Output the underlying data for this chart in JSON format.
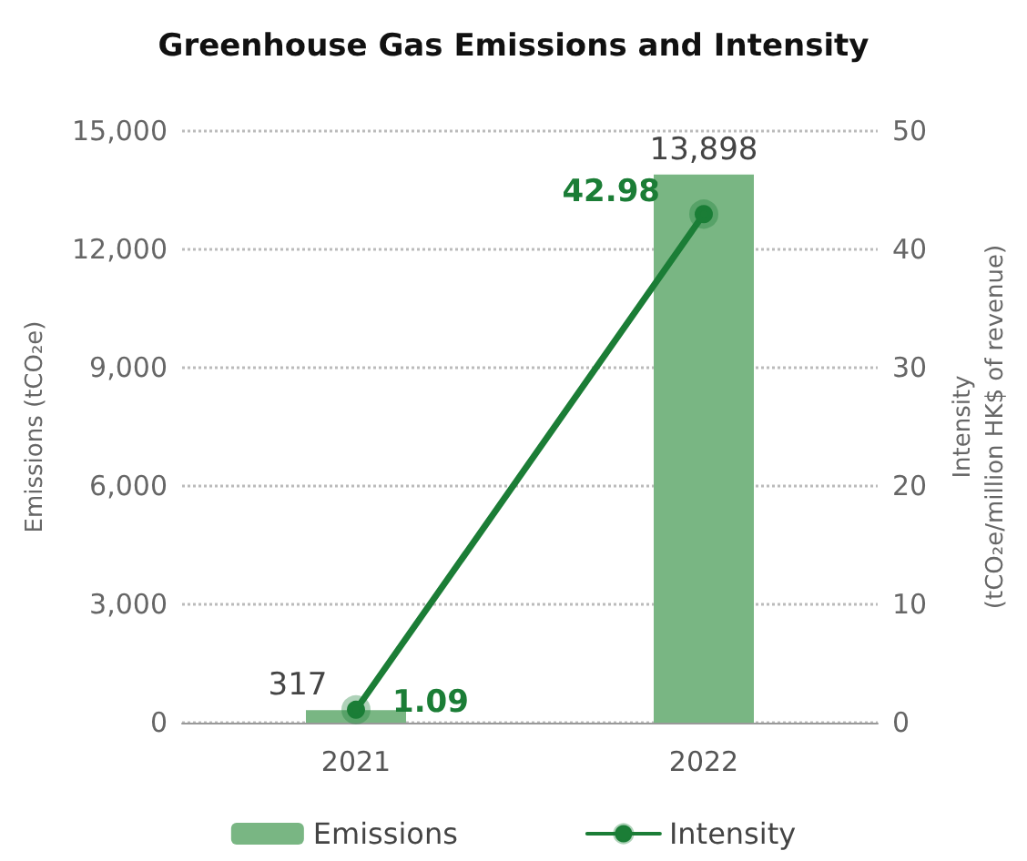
{
  "chart_data": {
    "type": "bar",
    "title": "Greenhouse Gas Emissions and Intensity",
    "categories": [
      "2021",
      "2022"
    ],
    "series": [
      {
        "name": "Emissions",
        "color": "#79b683",
        "values": [
          317,
          13898
        ],
        "value_labels": [
          "317",
          "13,898"
        ]
      },
      {
        "name": "Intensity",
        "type": "line",
        "axis": "y2",
        "color": "#1b7d36",
        "values": [
          1.09,
          42.98
        ],
        "value_labels": [
          "1.09",
          "42.98"
        ]
      }
    ],
    "ylabel": "Emissions (tCO₂e)",
    "y2label": "Intensity\n(tCO₂e/million HK$ of revenue)",
    "ylim": [
      0,
      15000
    ],
    "yticks": [
      0,
      {
        "value": 3000,
        "label": "3,000"
      },
      {
        "value": 6000,
        "label": "6,000"
      },
      {
        "value": 9000,
        "label": "9,000"
      },
      {
        "value": 12000,
        "label": "12,000"
      },
      {
        "value": 15000,
        "label": "15,000"
      }
    ],
    "y2lim": [
      0,
      50
    ],
    "y2ticks": [
      0,
      10,
      20,
      30,
      40,
      50
    ],
    "grid": "y",
    "legend": "bottom",
    "marker": "circle"
  }
}
